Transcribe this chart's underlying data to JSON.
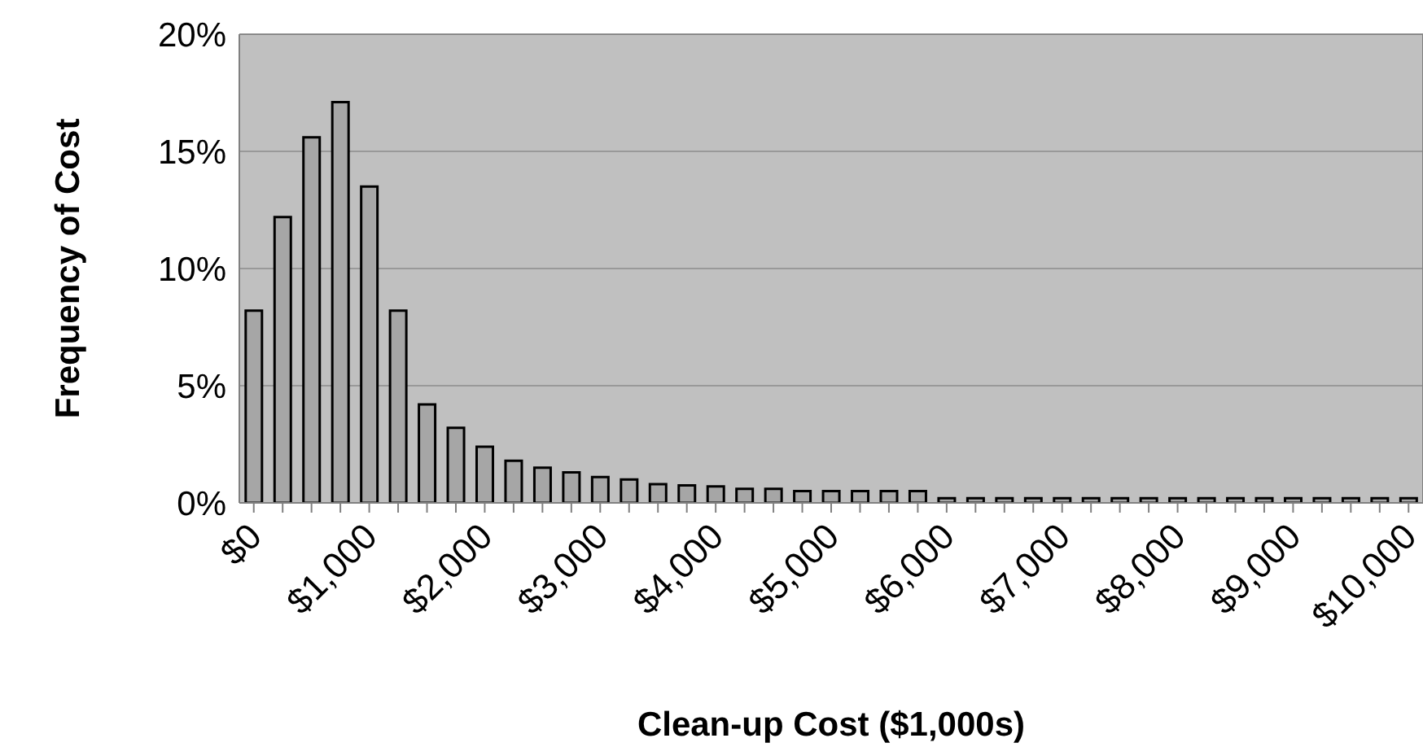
{
  "chart_data": {
    "type": "bar",
    "xlabel": "Clean-up Cost ($1,000s)",
    "ylabel": "Frequency of Cost",
    "categories": [
      "$0",
      null,
      null,
      null,
      "$1,000",
      null,
      null,
      null,
      "$2,000",
      null,
      null,
      null,
      "$3,000",
      null,
      null,
      null,
      "$4,000",
      null,
      null,
      null,
      "$5,000",
      null,
      null,
      null,
      "$6,000",
      null,
      null,
      null,
      "$7,000",
      null,
      null,
      null,
      "$8,000",
      null,
      null,
      null,
      "$9,000",
      null,
      null,
      null,
      "$10,000"
    ],
    "series": [
      {
        "color": "#a6a6a6",
        "values": [
          8.2,
          12.2,
          15.6,
          17.1,
          13.5,
          8.2,
          4.2,
          3.2,
          2.4,
          1.8,
          1.5,
          1.3,
          1.1,
          1.0,
          0.8,
          0.75,
          0.7,
          0.6,
          0.6,
          0.5,
          0.5,
          0.5,
          0.5,
          0.5,
          0.2,
          0.2,
          0.2,
          0.2,
          0.2,
          0.2,
          0.2,
          0.2,
          0.2,
          0.2,
          0.2,
          0.2,
          0.2,
          0.2,
          0.2,
          0.2,
          0.2
        ]
      }
    ],
    "ylim": [
      0,
      20
    ],
    "yticks": [
      {
        "value": 0,
        "label": "0%"
      },
      {
        "value": 5,
        "label": "5%"
      },
      {
        "value": 10,
        "label": "10%"
      },
      {
        "value": 15,
        "label": "15%"
      },
      {
        "value": 20,
        "label": "20%"
      }
    ],
    "grid": "y"
  }
}
